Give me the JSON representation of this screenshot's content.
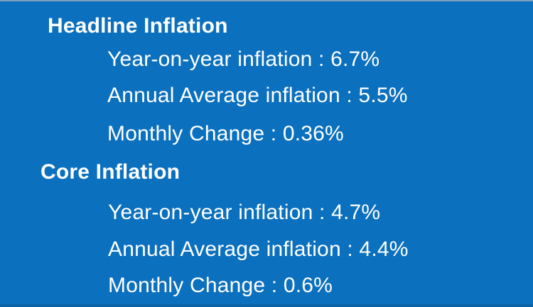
{
  "slide": {
    "background_color": "#0B70BE",
    "text_color": "#FFFFFF",
    "sections": [
      {
        "heading": "Headline Inflation",
        "items": [
          {
            "label": "Year-on-year inflation",
            "value": "6.7%",
            "display": "Year-on-year inflation : 6.7%"
          },
          {
            "label": "Annual Average inflation",
            "value": "5.5%",
            "display": "Annual Average inflation : 5.5%"
          },
          {
            "label": "Monthly Change",
            "value": "0.36%",
            "display": "Monthly Change : 0.36%"
          }
        ]
      },
      {
        "heading": "Core Inflation",
        "items": [
          {
            "label": "Year-on-year inflation",
            "value": "4.7%",
            "display": "Year-on-year inflation : 4.7%"
          },
          {
            "label": "Annual Average inflation",
            "value": "4.4%",
            "display": "Annual Average inflation : 4.4%"
          },
          {
            "label": "Monthly Change",
            "value": "0.6%",
            "display": "Monthly Change : 0.6%"
          }
        ]
      }
    ]
  }
}
